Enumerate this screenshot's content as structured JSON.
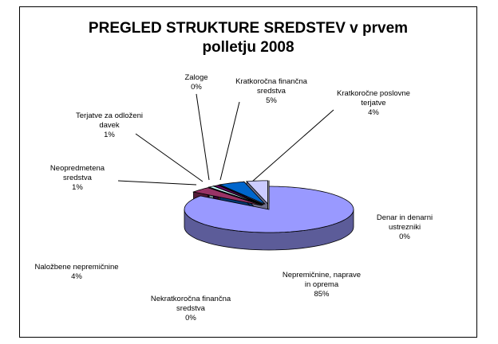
{
  "chart_data": {
    "type": "pie3d",
    "title": "PREGLED STRUKTURE SREDSTEV v prvem\npolletju 2008",
    "categories": [
      "Nepremičnine, naprave\nin oprema",
      "Naložbene nepremičnine",
      "Nekratkoročna finančna\nsredstva",
      "Neopredmetena\nsredstva",
      "Terjatve za odloženi\ndavek",
      "Zaloge",
      "Kratkoročna finančna\nsredstva",
      "Kratkoročne poslovne\nterjatve",
      "Denar in denarni\nustrezniki"
    ],
    "values": [
      85,
      4,
      0,
      1,
      1,
      0,
      5,
      4,
      0
    ],
    "value_labels": [
      "85%",
      "4%",
      "0%",
      "1%",
      "1%",
      "0%",
      "5%",
      "4%",
      "0%"
    ],
    "colors": [
      "#9999ff",
      "#993366",
      "#ffffcc",
      "#ccffff",
      "#660066",
      "#ff8080",
      "#0066cc",
      "#ccccff",
      "#000080"
    ]
  }
}
